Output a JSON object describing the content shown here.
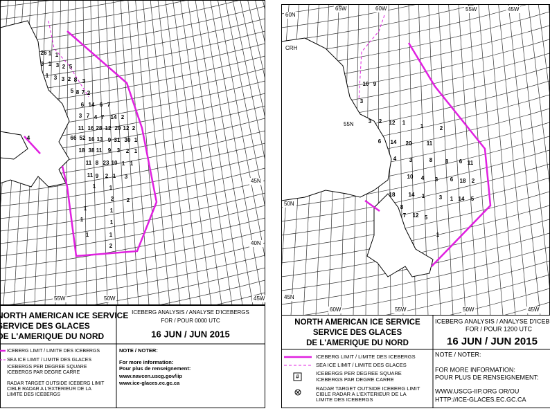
{
  "left_map": {
    "longitude_labels": [
      "55W",
      "50W",
      "45W"
    ],
    "latitude_labels": [
      "45N",
      "40N"
    ],
    "iceberg_counts": [
      "26",
      "1",
      "1",
      "3",
      "1",
      "3",
      "2",
      "5",
      "1",
      "3",
      "3",
      "2",
      "8",
      "3",
      "5",
      "8",
      "7",
      "2",
      "6",
      "14",
      "6",
      "7",
      "3",
      "7",
      "4",
      "7",
      "14",
      "2",
      "11",
      "16",
      "28",
      "12",
      "20",
      "12",
      "2",
      "66",
      "52",
      "16",
      "13",
      "9",
      "31",
      "30",
      "1",
      "18",
      "38",
      "11",
      "9",
      "3",
      "2",
      "1",
      "11",
      "8",
      "23",
      "10",
      "1",
      "1",
      "11",
      "9",
      "2",
      "1",
      "3",
      "1",
      "1",
      "2",
      "2",
      "1",
      "1",
      "1",
      "1",
      "1",
      "1",
      "2",
      "4"
    ]
  },
  "left_legend": {
    "title": [
      "NORTH AMERICAN ICE SERVICE",
      "SERVICE DES GLACES",
      "DE L'AMERIQUE DU NORD"
    ],
    "analysis": "ICEBERG ANALYSIS / ANALYSE D'ICEBERGS",
    "time": "FOR / POUR 0000 UTC",
    "date": "16 JUN / JUN 2015",
    "note": "NOTE / NOTER:",
    "info": [
      "For more information:",
      "Pour plus de renseignement:",
      "www.navcen.uscg.gov/iip",
      "www.ice-glaces.ec.gc.ca"
    ],
    "items": [
      "ICEBERG LIMIT / LIMITE DES ICEBERGS",
      "SEA ICE LIMIT / LIMITE DES GLACES",
      "ICEBERGS PER DEGREE SQUARE",
      "ICEBERGS PAR DEGRE CARRE",
      "RADAR TARGET OUTSIDE ICEBERG LIMIT",
      "CIBLE RADAR A L'EXTERIEUR DE LA",
      "LIMITE DES ICEBERGS"
    ]
  },
  "right_map": {
    "top_labels": [
      "60N",
      "65W",
      "60W",
      "55W",
      "45W"
    ],
    "station": "CRH",
    "latitude_labels": [
      "55N",
      "50N",
      "45N"
    ],
    "bottom_labels": [
      "60W",
      "55W",
      "50W",
      "45W"
    ],
    "iceberg_counts": [
      "10",
      "9",
      "3",
      "3",
      "2",
      "12",
      "1",
      "1",
      "2",
      "6",
      "14",
      "20",
      "11",
      "4",
      "3",
      "8",
      "8",
      "6",
      "11",
      "10",
      "4",
      "3",
      "6",
      "18",
      "2",
      "18",
      "14",
      "1",
      "3",
      "1",
      "14",
      "5",
      "8",
      "7",
      "12",
      "5",
      "1"
    ]
  },
  "right_legend": {
    "title": [
      "NORTH AMERICAN ICE SERVICE",
      "SERVICE DES GLACES",
      "DE L'AMERIQUE DU NORD"
    ],
    "analysis": "ICEBERG ANALYSIS / ANALYSE D'ICEBERGS",
    "time": "FOR / POUR 1200 UTC",
    "date": "16 JUN / JUN 2015",
    "note": "NOTE / NOTER:",
    "info": [
      "FOR MORE INFORMATION:",
      "POUR PLUS DE RENSEIGNEMENT:",
      "WWW.USCG-IIP.ORG    OR/OU",
      "HTTP://ICE-GLACES.EC.GC.CA"
    ],
    "items": [
      "ICEBERG LIMIT / LIMITE DES ICEBERGS",
      "SEA ICE LIMIT / LIMITE DES GLACES",
      "#",
      "ICEBERGS PER DEGREE SQUARE",
      "ICEBERGS PAR DEGRE CARRE",
      "RADAR TARGET OUTSIDE ICEBERG LIMIT",
      "CIBLE RADAR A L'EXTERIEUR DE LA",
      "LIMITE DES ICEBERGS"
    ]
  }
}
